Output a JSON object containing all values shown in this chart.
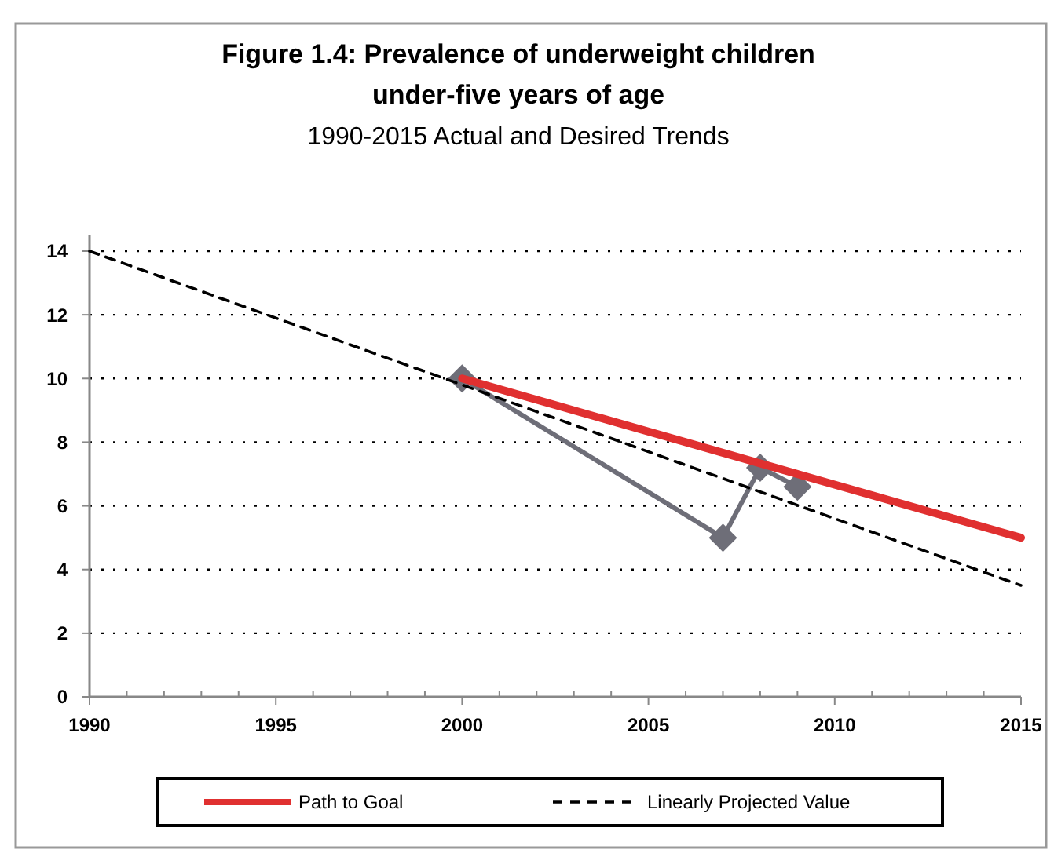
{
  "chart_data": {
    "type": "line",
    "title": "Figure 1.4: Prevalence of underweight children under-five years of age",
    "subtitle": "1990-2015 Actual and Desired Trends",
    "xlim": [
      1990,
      2015
    ],
    "xticks": [
      1990,
      {
        "value": 1991,
        "label": null
      },
      {
        "value": 1992,
        "label": null
      },
      {
        "value": 1993,
        "label": null
      },
      {
        "value": 1994,
        "label": null
      },
      1995,
      {
        "value": 1996,
        "label": null
      },
      {
        "value": 1997,
        "label": null
      },
      {
        "value": 1998,
        "label": null
      },
      {
        "value": 1999,
        "label": null
      },
      2000,
      {
        "value": 2001,
        "label": null
      },
      {
        "value": 2002,
        "label": null
      },
      {
        "value": 2003,
        "label": null
      },
      {
        "value": 2004,
        "label": null
      },
      2005,
      {
        "value": 2006,
        "label": null
      },
      {
        "value": 2007,
        "label": null
      },
      {
        "value": 2008,
        "label": null
      },
      {
        "value": 2009,
        "label": null
      },
      2010,
      {
        "value": 2011,
        "label": null
      },
      {
        "value": 2012,
        "label": null
      },
      {
        "value": 2013,
        "label": null
      },
      {
        "value": 2014,
        "label": null
      },
      2015
    ],
    "ylim": [
      0,
      14
    ],
    "yticks": [
      0,
      2,
      4,
      6,
      8,
      10,
      12,
      14
    ],
    "grid": "y",
    "legend": "bottom",
    "series": [
      {
        "color": "#6e6e78",
        "x": [
          2000,
          2007,
          2008,
          2009
        ],
        "values": [
          10,
          5,
          7.2,
          6.6
        ],
        "marker": "diamond",
        "line_style": "solid"
      },
      {
        "name": "Path to Goal",
        "color": "#e03030",
        "x": [
          2000,
          2015
        ],
        "values": [
          10,
          5
        ],
        "marker": "none",
        "line_style": "solid"
      },
      {
        "name": "Linearly Projected Value",
        "color": "#000000",
        "x": [
          1990,
          2015
        ],
        "values": [
          14,
          3.5
        ],
        "marker": "none",
        "line_style": "dashed"
      }
    ]
  }
}
